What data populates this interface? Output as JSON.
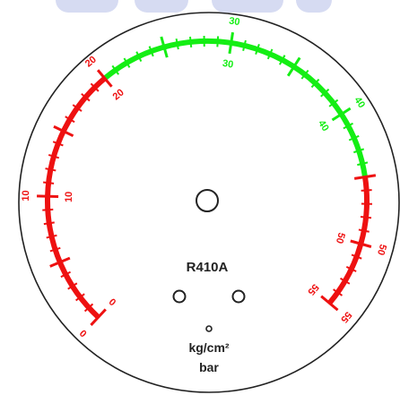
{
  "gauge": {
    "refrigerant": "R410A",
    "unit_line_1": "kg/cm²",
    "unit_line_2": "bar",
    "colors": {
      "green_zone": "#14ee14",
      "red_zone": "#ee1111",
      "dial_outline": "#222222",
      "text": "#222222",
      "background": "#ffffff",
      "banner": "#d6dbf2"
    },
    "scale": {
      "min": 0,
      "max": 55,
      "red_range_low": [
        0,
        20
      ],
      "green_range": [
        20,
        45
      ],
      "red_range_high": [
        45,
        55
      ],
      "outer_labels": [
        "0",
        "10",
        "20",
        "30",
        "40",
        "50",
        "55"
      ],
      "inner_labels": [
        "0",
        "10",
        "20",
        "30",
        "40",
        "50",
        "55"
      ]
    }
  }
}
